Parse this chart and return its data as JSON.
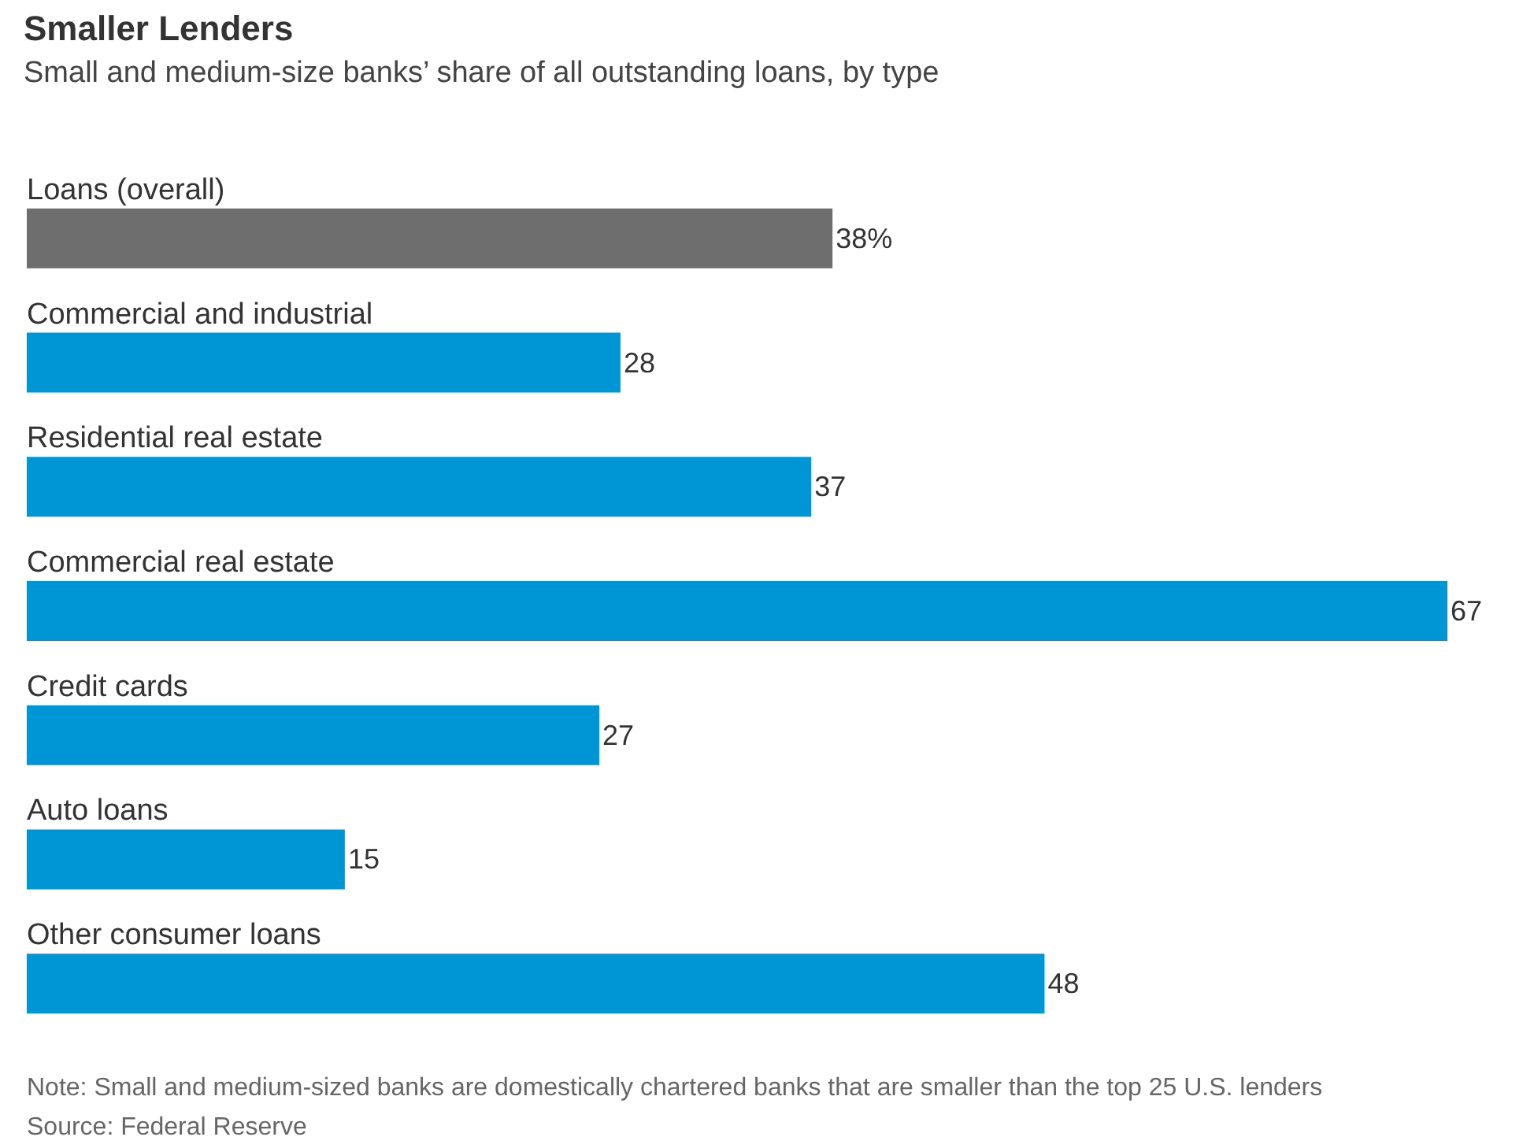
{
  "chart_data": {
    "type": "bar",
    "orientation": "horizontal",
    "title": "Smaller Lenders",
    "subtitle": "Small and medium-size banks’ share of all outstanding loans, by type",
    "categories": [
      "Loans (overall)",
      "Commercial and industrial",
      "Residential real estate",
      "Commercial real estate",
      "Credit cards",
      "Auto loans",
      "Other consumer loans"
    ],
    "values": [
      38,
      28,
      37,
      67,
      27,
      15,
      48
    ],
    "colors": [
      "#6e6e6e",
      "#0096d6",
      "#0096d6",
      "#0096d6",
      "#0096d6",
      "#0096d6",
      "#0096d6"
    ],
    "value_labels": [
      "38%",
      "28",
      "37",
      "67",
      "27",
      "15",
      "48"
    ],
    "annotations": [
      "Note: Small and medium-sized banks are domestically chartered banks that are smaller than the top 25 U.S. lenders",
      "Source: Federal Reserve"
    ]
  }
}
